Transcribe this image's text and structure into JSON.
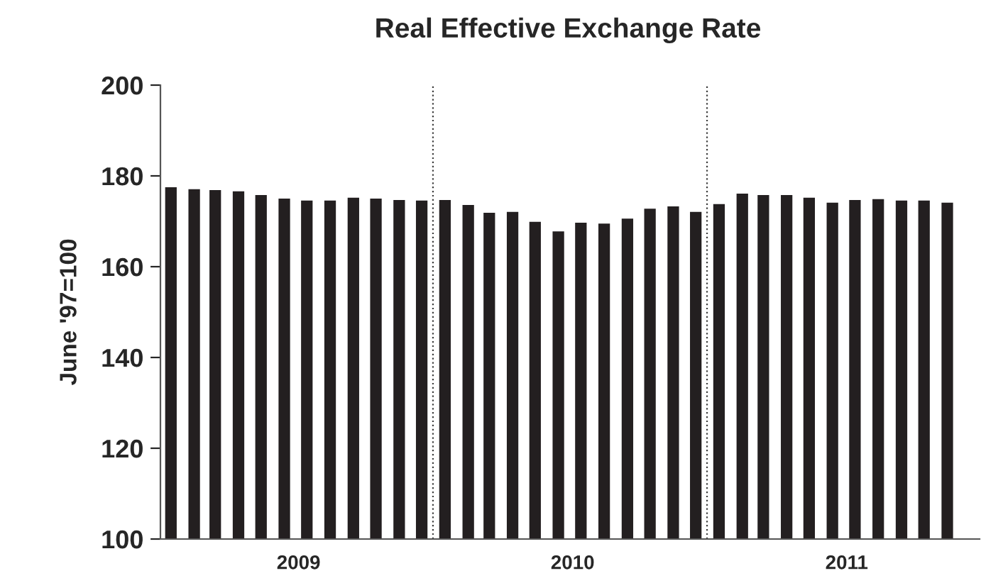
{
  "chart_data": {
    "type": "bar",
    "title": "Real Effective Exchange Rate",
    "ylabel": "June '97=100",
    "x": [
      "2009-01",
      "2009-02",
      "2009-03",
      "2009-04",
      "2009-05",
      "2009-06",
      "2009-07",
      "2009-08",
      "2009-09",
      "2009-10",
      "2009-11",
      "2009-12",
      "2010-01",
      "2010-02",
      "2010-03",
      "2010-04",
      "2010-05",
      "2010-06",
      "2010-07",
      "2010-08",
      "2010-09",
      "2010-10",
      "2010-11",
      "2010-12",
      "2011-01",
      "2011-02",
      "2011-03",
      "2011-04",
      "2011-05",
      "2011-06",
      "2011-07",
      "2011-08",
      "2011-09",
      "2011-10",
      "2011-11"
    ],
    "values": [
      177.7,
      177.3,
      177.1,
      176.8,
      176.0,
      175.2,
      174.8,
      174.8,
      175.4,
      175.2,
      174.9,
      174.8,
      174.9,
      173.8,
      172.1,
      172.3,
      170.1,
      168.0,
      169.9,
      169.7,
      170.8,
      173.0,
      173.5,
      172.3,
      174.0,
      176.3,
      176.0,
      176.0,
      175.4,
      174.3,
      174.9,
      175.1,
      174.8,
      174.8,
      174.3
    ],
    "color": "#231f20",
    "xlim": [
      "2008-12-18",
      "2011-12-14"
    ],
    "xticks": [
      {
        "value": "2009-06-20",
        "label": "2009"
      },
      {
        "value": "2010-06-20",
        "label": "2010"
      },
      {
        "value": "2011-06-20",
        "label": "2011"
      }
    ],
    "ylim": [
      100,
      200
    ],
    "yticks": [
      100,
      120,
      140,
      160,
      180,
      200
    ],
    "ref_lines": [
      {
        "axis": "x",
        "value": "2009-12-16",
        "color": "#404040",
        "line_style": "dotted"
      },
      {
        "axis": "x",
        "value": "2010-12-16",
        "color": "#404040",
        "line_style": "dotted"
      }
    ],
    "grid": false,
    "legend": false
  }
}
